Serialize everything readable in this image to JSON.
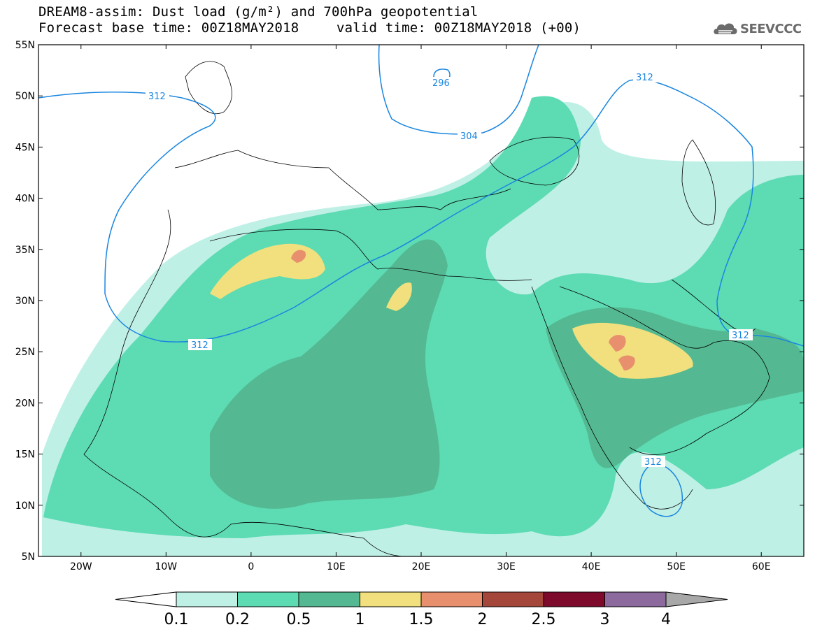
{
  "header": {
    "title_line1": "DREAM8-assim: Dust load (g/m²) and 700hPa geopotential",
    "base_time_text": "Forecast base time: 00Z18MAY2018",
    "valid_time_text": "valid time: 00Z18MAY2018 (+00)"
  },
  "logo": {
    "text": "SEEVCCC",
    "icon": "cloud-logo-icon"
  },
  "map": {
    "lon_range": [
      -25,
      65
    ],
    "lat_range": [
      5,
      55
    ],
    "lat_ticks": [
      "55N",
      "50N",
      "45N",
      "40N",
      "35N",
      "30N",
      "25N",
      "20N",
      "15N",
      "10N",
      "5N"
    ],
    "lon_ticks": [
      "20W",
      "10W",
      "0",
      "10E",
      "20E",
      "30E",
      "40E",
      "50E",
      "60E"
    ],
    "contour_labels": [
      "312",
      "296",
      "304",
      "312",
      "312",
      "312",
      "312"
    ],
    "contour_color": "#1a86e0"
  },
  "colorbar": {
    "labels": [
      "0.1",
      "0.2",
      "0.5",
      "1",
      "1.5",
      "2",
      "2.5",
      "3",
      "4"
    ],
    "colors": [
      "#bff0e6",
      "#5ddbb3",
      "#54b992",
      "#f1e07d",
      "#e88f6e",
      "#a5463a",
      "#7d0a2b",
      "#8d6a9e",
      "#a8a8a8"
    ]
  }
}
